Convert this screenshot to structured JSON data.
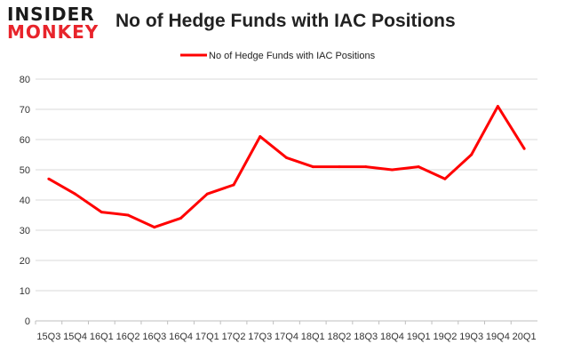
{
  "brand": {
    "line1": "INSIDER",
    "line2": "MONKEY"
  },
  "colors": {
    "series": "#ff0000",
    "brand_accent": "#e8242b",
    "grid": "#d9d9d9"
  },
  "chart_data": {
    "type": "line",
    "title": "No of Hedge Funds with IAC Positions",
    "xlabel": "",
    "ylabel": "",
    "ylim": [
      0,
      80
    ],
    "yticks": [
      0,
      10,
      20,
      30,
      40,
      50,
      60,
      70,
      80
    ],
    "grid": true,
    "legend_position": "top-center",
    "categories": [
      "15Q3",
      "15Q4",
      "16Q1",
      "16Q2",
      "16Q3",
      "16Q4",
      "17Q1",
      "17Q2",
      "17Q3",
      "17Q4",
      "18Q1",
      "18Q2",
      "18Q3",
      "18Q4",
      "19Q1",
      "19Q2",
      "19Q3",
      "19Q4",
      "20Q1"
    ],
    "series": [
      {
        "name": "No of Hedge Funds with IAC Positions",
        "values": [
          47,
          42,
          36,
          35,
          31,
          34,
          42,
          45,
          61,
          54,
          51,
          51,
          51,
          50,
          51,
          47,
          55,
          71,
          57
        ]
      }
    ]
  }
}
